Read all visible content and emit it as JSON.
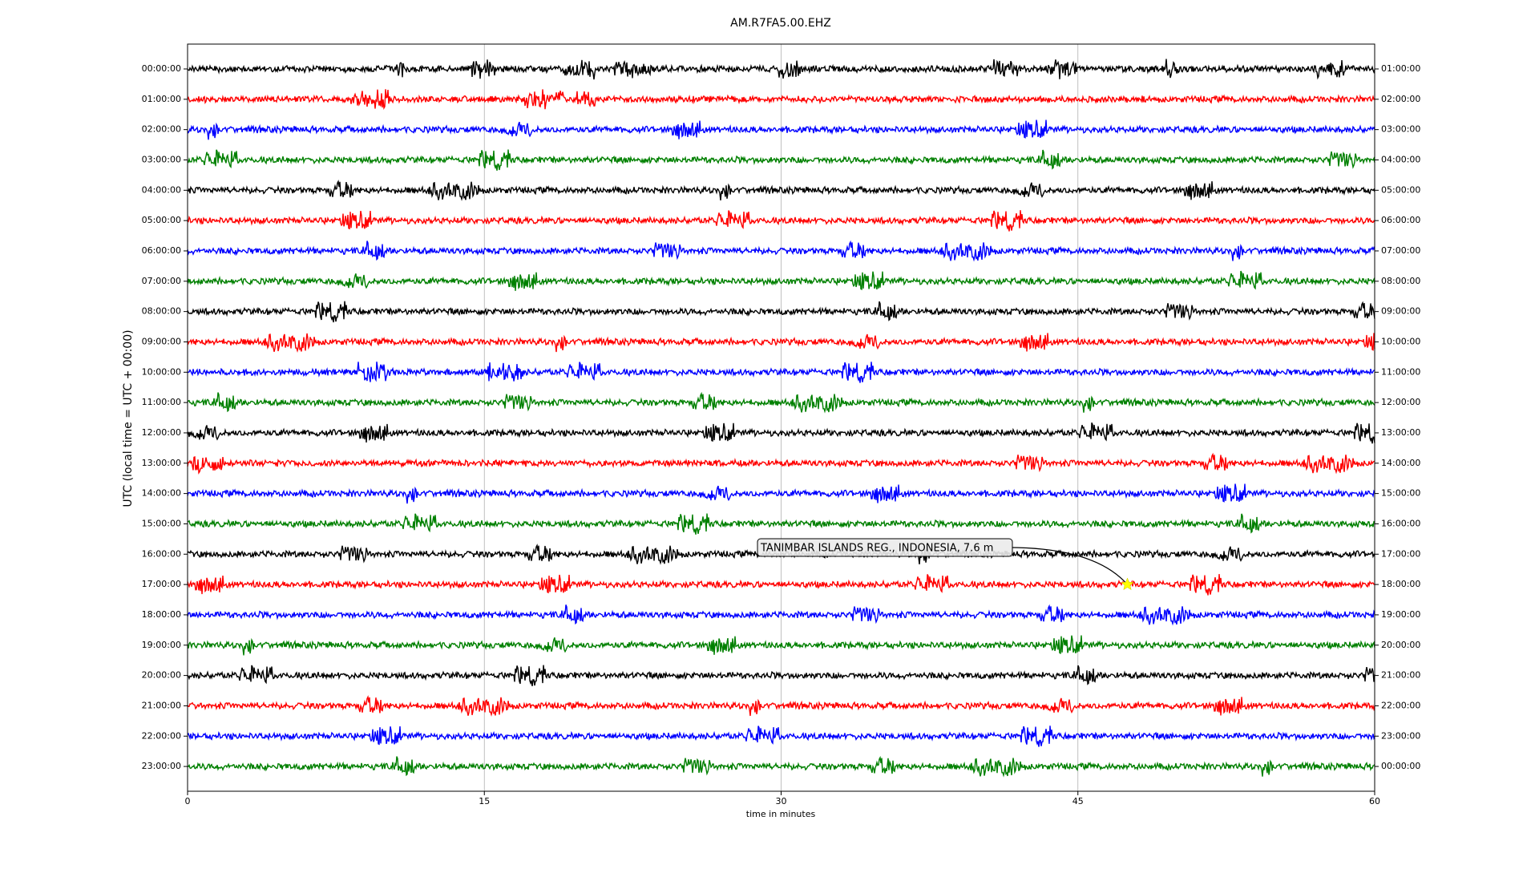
{
  "chart_data": {
    "type": "helicorder",
    "title": "AM.R7FA5.00.EHZ",
    "x_label": "time in minutes",
    "y_label": "UTC (local time = UTC + 00:00)",
    "xlim": [
      0,
      60
    ],
    "xticks": [
      0,
      15,
      30,
      45,
      60
    ],
    "grid": true,
    "categories": [
      "00:00:00",
      "01:00:00",
      "02:00:00",
      "03:00:00",
      "04:00:00",
      "05:00:00",
      "06:00:00",
      "07:00:00",
      "08:00:00",
      "09:00:00",
      "10:00:00",
      "11:00:00",
      "12:00:00",
      "13:00:00",
      "14:00:00",
      "15:00:00",
      "16:00:00",
      "17:00:00",
      "18:00:00",
      "19:00:00",
      "20:00:00",
      "21:00:00",
      "22:00:00",
      "23:00:00"
    ],
    "right_labels": [
      "01:00:00",
      "02:00:00",
      "03:00:00",
      "04:00:00",
      "05:00:00",
      "06:00:00",
      "07:00:00",
      "08:00:00",
      "09:00:00",
      "10:00:00",
      "11:00:00",
      "12:00:00",
      "13:00:00",
      "14:00:00",
      "15:00:00",
      "16:00:00",
      "17:00:00",
      "18:00:00",
      "19:00:00",
      "20:00:00",
      "21:00:00",
      "22:00:00",
      "23:00:00",
      "00:00:00"
    ],
    "colors": [
      "#000000",
      "#ff0000",
      "#0000ff",
      "#008000"
    ],
    "event": {
      "label": "TANIMBAR ISLANDS REG., INDONESIA, 7.6 m",
      "x": 47.5,
      "row": "17:00:00"
    }
  }
}
